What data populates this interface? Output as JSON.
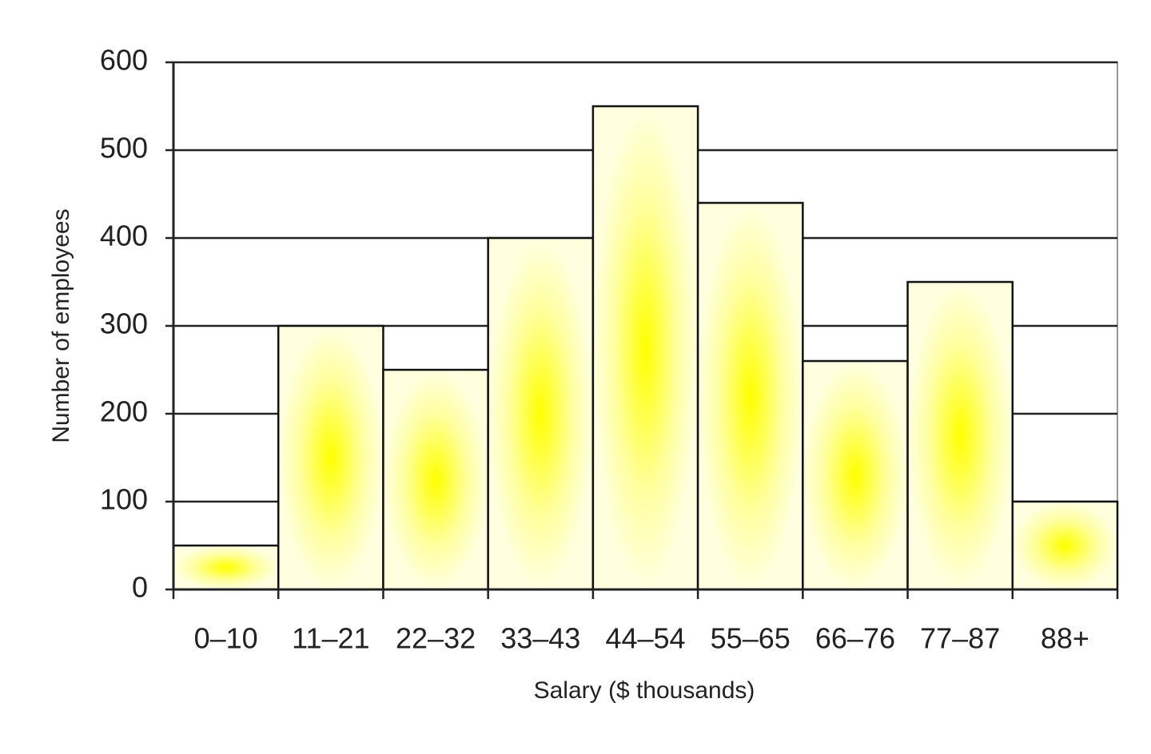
{
  "chart_data": {
    "type": "bar",
    "categories": [
      "0–10",
      "11–21",
      "22–32",
      "33–43",
      "44–54",
      "55–65",
      "66–76",
      "77–87",
      "88+"
    ],
    "values": [
      50,
      300,
      250,
      400,
      550,
      440,
      260,
      350,
      100
    ],
    "color": "#ffff00",
    "x_label": "Salary ($ thousands)",
    "y_label": "Number of employees",
    "ylim": [
      0,
      600
    ],
    "yticks": [
      0,
      100,
      200,
      300,
      400,
      500,
      600
    ],
    "grid": true
  }
}
